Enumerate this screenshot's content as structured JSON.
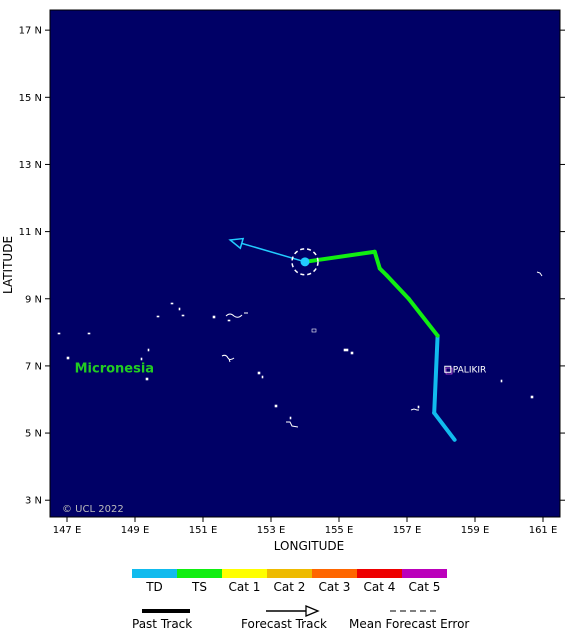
{
  "map": {
    "ocean_color": "#000066",
    "land_color": "#ffffff",
    "lon_range": [
      146.5,
      161.5
    ],
    "lat_range": [
      2.5,
      17.6
    ],
    "x_title": "LONGITUDE",
    "y_title": "LATITUDE",
    "lon_ticks": [
      {
        "v": 147,
        "label": "147 E"
      },
      {
        "v": 149,
        "label": "149 E"
      },
      {
        "v": 151,
        "label": "151 E"
      },
      {
        "v": 153,
        "label": "153 E"
      },
      {
        "v": 155,
        "label": "155 E"
      },
      {
        "v": 157,
        "label": "157 E"
      },
      {
        "v": 159,
        "label": "159 E"
      },
      {
        "v": 161,
        "label": "161 E"
      }
    ],
    "lat_ticks": [
      {
        "v": 3,
        "label": "3 N"
      },
      {
        "v": 5,
        "label": "5 N"
      },
      {
        "v": 7,
        "label": "7 N"
      },
      {
        "v": 9,
        "label": "9 N"
      },
      {
        "v": 11,
        "label": "11 N"
      },
      {
        "v": 13,
        "label": "13 N"
      },
      {
        "v": 15,
        "label": "15 N"
      },
      {
        "v": 17,
        "label": "17 N"
      }
    ],
    "copyright": "© UCL 2022",
    "region_label": {
      "text": "Micronesia",
      "color": "#22cc22",
      "lon": 148.4,
      "lat": 6.95
    },
    "city": {
      "name": "PALIKIR",
      "lon": 158.2,
      "lat": 6.9
    }
  },
  "storm": {
    "past_track": [
      {
        "lon": 158.4,
        "lat": 4.8,
        "cat": "TD"
      },
      {
        "lon": 157.8,
        "lat": 5.6,
        "cat": "TD"
      },
      {
        "lon": 157.9,
        "lat": 7.9,
        "cat": "TD"
      },
      {
        "lon": 157.05,
        "lat": 9.0,
        "cat": "TS"
      },
      {
        "lon": 156.4,
        "lat": 9.7,
        "cat": "TS"
      },
      {
        "lon": 156.2,
        "lat": 9.9,
        "cat": "TS"
      },
      {
        "lon": 156.05,
        "lat": 10.4,
        "cat": "TS"
      },
      {
        "lon": 154.0,
        "lat": 10.1,
        "cat": "TS"
      }
    ],
    "current": {
      "lon": 154.0,
      "lat": 10.1
    },
    "forecast_track": [
      {
        "lon": 154.0,
        "lat": 10.1
      },
      {
        "lon": 151.8,
        "lat": 10.75
      }
    ],
    "forecast_color": "#22ccff"
  },
  "legend": {
    "categories": [
      {
        "label": "TD",
        "color": "#11bbee"
      },
      {
        "label": "TS",
        "color": "#11ee11"
      },
      {
        "label": "Cat 1",
        "color": "#ffff00"
      },
      {
        "label": "Cat 2",
        "color": "#eebb00"
      },
      {
        "label": "Cat 3",
        "color": "#ff6600"
      },
      {
        "label": "Cat 4",
        "color": "#ee0000"
      },
      {
        "label": "Cat 5",
        "color": "#bb00bb"
      }
    ],
    "past_track_label": "Past Track",
    "forecast_track_label": "Forecast Track",
    "error_label": "Mean Forecast Error"
  }
}
